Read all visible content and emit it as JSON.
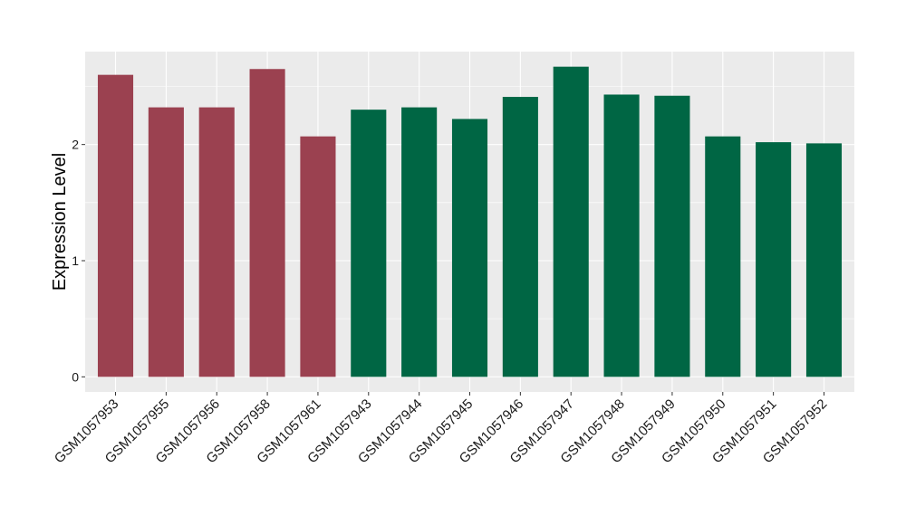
{
  "chart_data": {
    "type": "bar",
    "title": "",
    "xlabel": "",
    "ylabel": "Expression Level",
    "ylim": [
      -0.13,
      2.8
    ],
    "yticks": [
      0,
      1,
      2
    ],
    "grid": true,
    "legend": "none",
    "group_colors": {
      "group1": "#9b4150",
      "group2": "#006644"
    },
    "categories": [
      "GSM1057953",
      "GSM1057955",
      "GSM1057956",
      "GSM1057958",
      "GSM1057961",
      "GSM1057943",
      "GSM1057944",
      "GSM1057945",
      "GSM1057946",
      "GSM1057947",
      "GSM1057948",
      "GSM1057949",
      "GSM1057950",
      "GSM1057951",
      "GSM1057952"
    ],
    "values": [
      2.6,
      2.32,
      2.32,
      2.65,
      2.07,
      2.3,
      2.32,
      2.22,
      2.41,
      2.67,
      2.43,
      2.42,
      2.07,
      2.02,
      2.01
    ],
    "groups": [
      "group1",
      "group1",
      "group1",
      "group1",
      "group1",
      "group2",
      "group2",
      "group2",
      "group2",
      "group2",
      "group2",
      "group2",
      "group2",
      "group2",
      "group2"
    ]
  }
}
